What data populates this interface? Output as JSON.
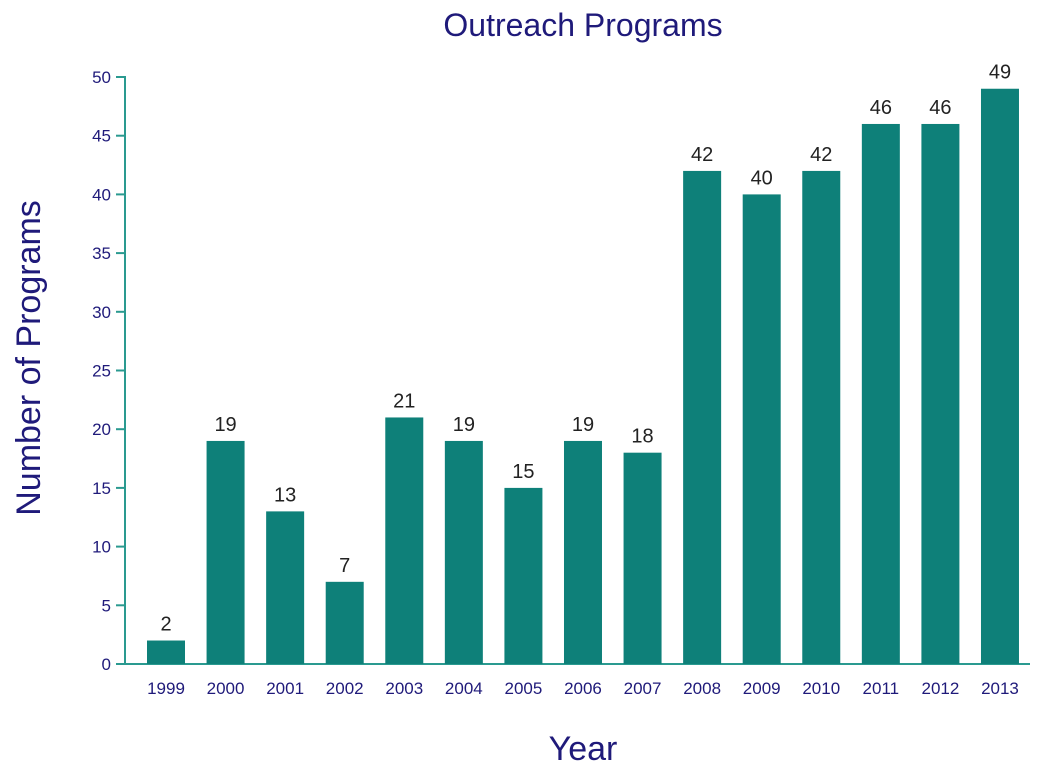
{
  "chart_data": {
    "type": "bar",
    "title": "Outreach Programs",
    "xlabel": "Year",
    "ylabel": "Number of Programs",
    "categories": [
      "1999",
      "2000",
      "2001",
      "2002",
      "2003",
      "2004",
      "2005",
      "2006",
      "2007",
      "2008",
      "2009",
      "2010",
      "2011",
      "2012",
      "2013"
    ],
    "values": [
      2,
      19,
      13,
      7,
      21,
      19,
      15,
      19,
      18,
      42,
      40,
      42,
      46,
      46,
      49
    ],
    "ylim": [
      0,
      50
    ],
    "yticks": [
      0,
      5,
      10,
      15,
      20,
      25,
      30,
      35,
      40,
      45,
      50
    ],
    "grid": false,
    "data_labels": true,
    "colors": {
      "bar": "#0e8079",
      "axis": "#2a9a90",
      "text": "#1f1a7a",
      "data_label": "#222222"
    }
  }
}
